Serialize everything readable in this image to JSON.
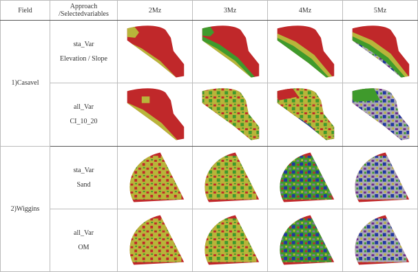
{
  "table": {
    "header": [
      "Field",
      "Approach /Selectedvariables",
      "2Mz",
      "3Mz",
      "4Mz",
      "5Mz"
    ],
    "groups": [
      {
        "field": "1)Casavel",
        "rows": [
          [
            "sta_Var",
            "Elevation / Slope"
          ],
          [
            "all_Var",
            "CI_10_20"
          ]
        ]
      },
      {
        "field": "2)Wiggins",
        "rows": [
          [
            "sta_Var",
            "Sand"
          ],
          [
            "all_Var",
            "OM"
          ]
        ]
      }
    ]
  }
}
